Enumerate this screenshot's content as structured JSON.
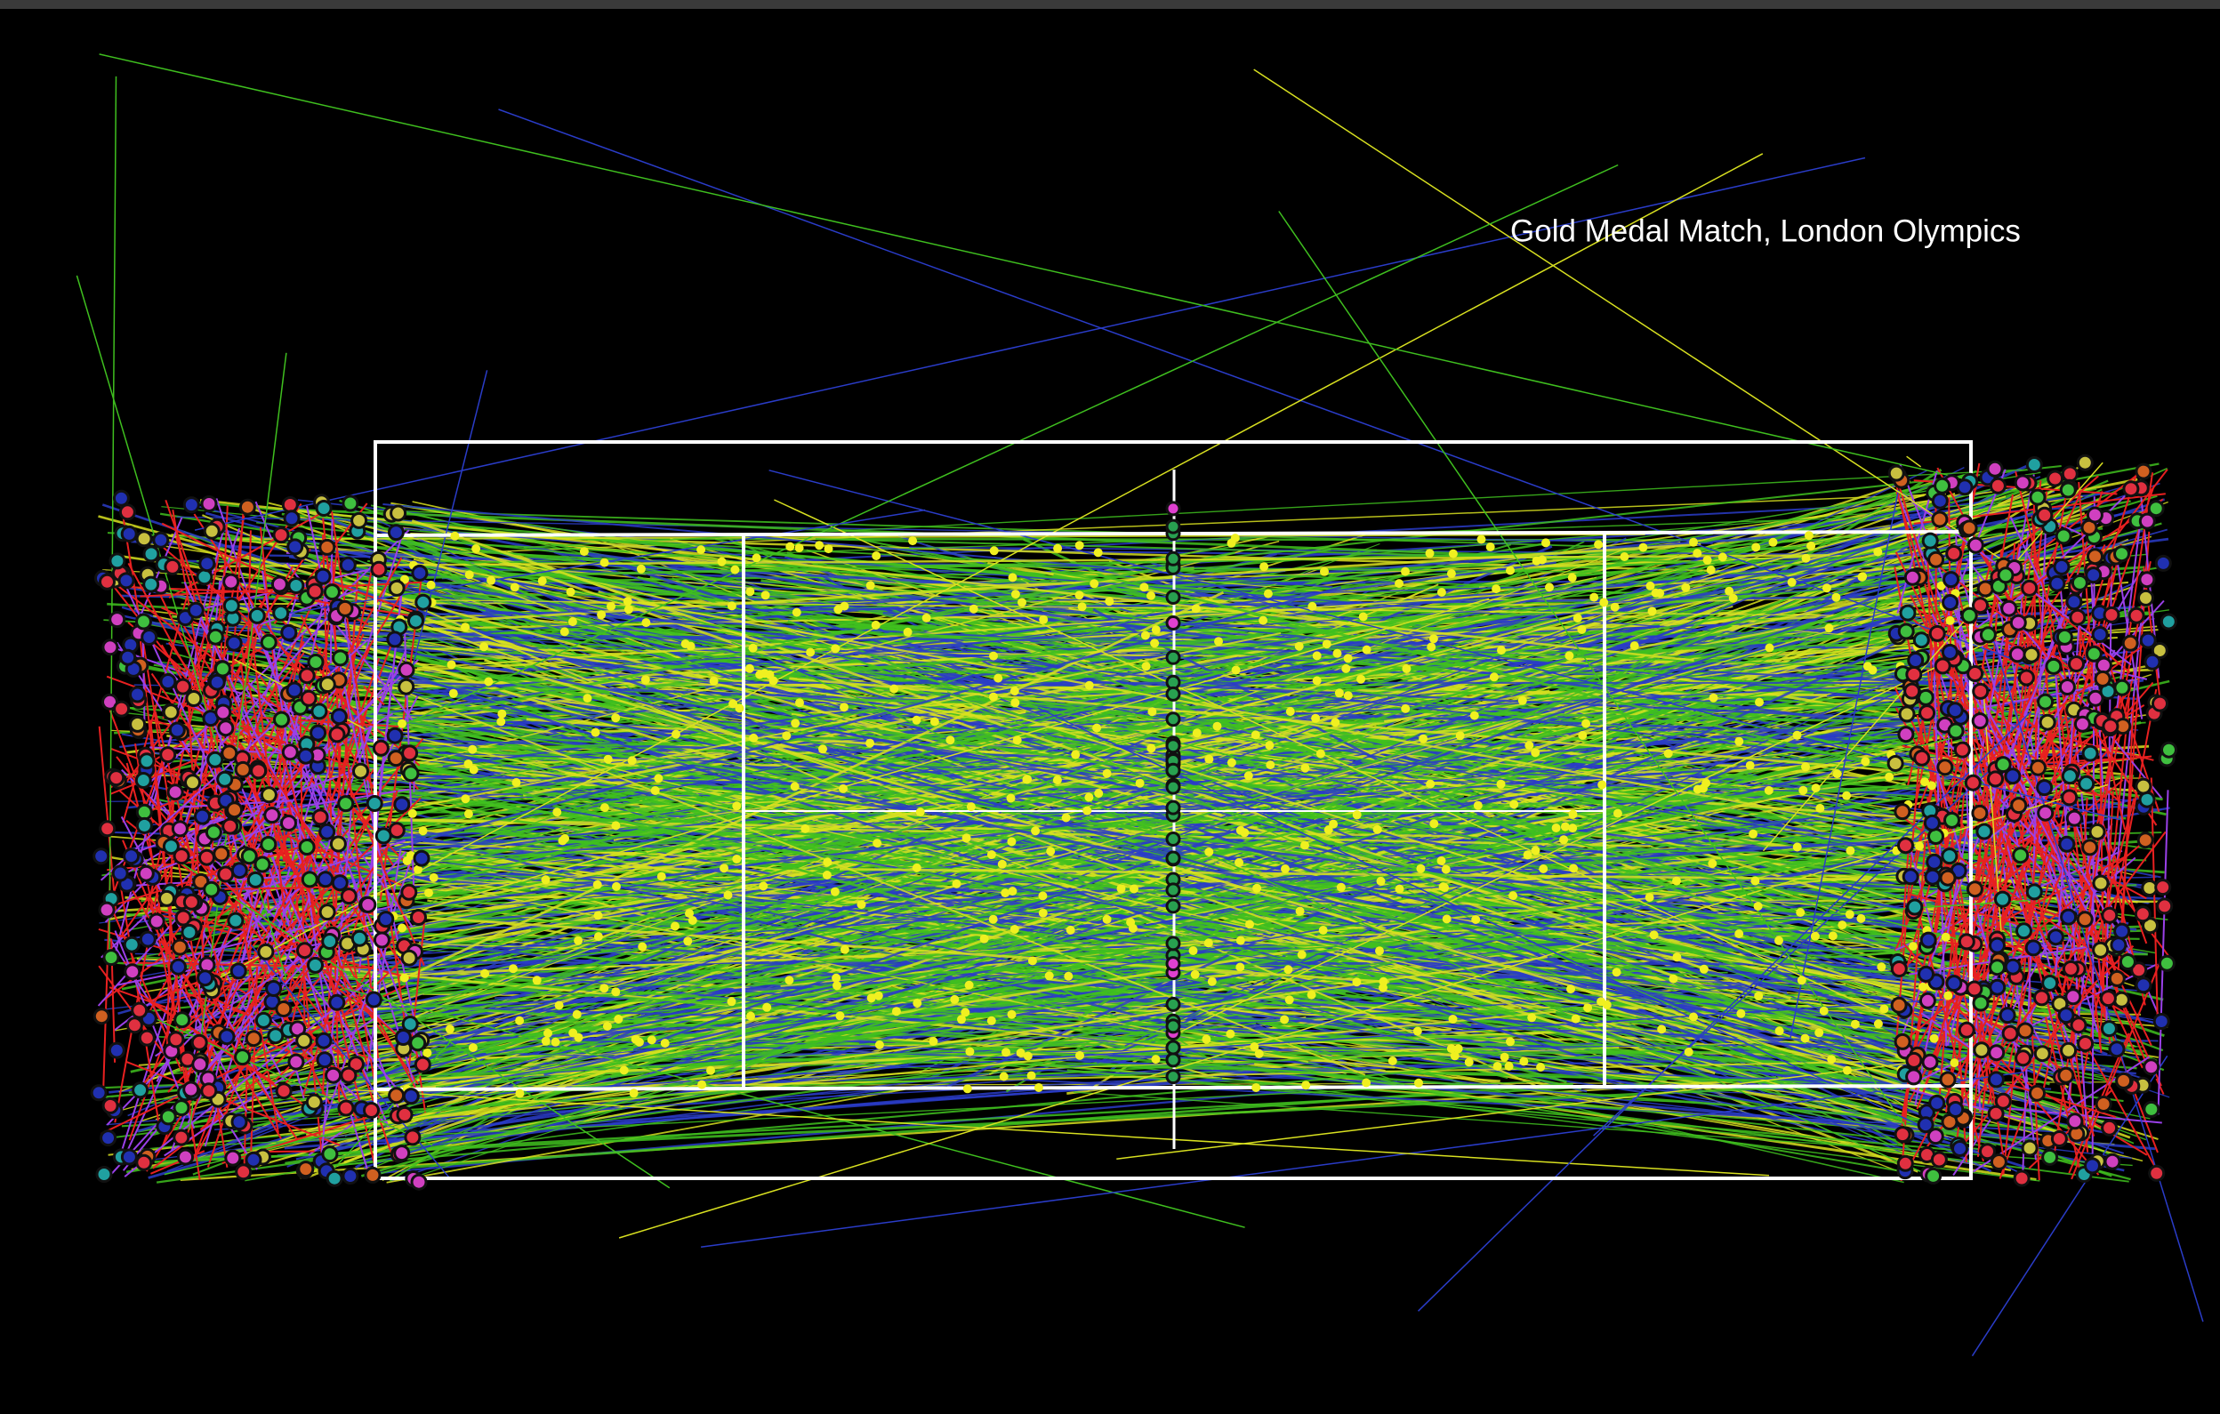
{
  "title": "Gold Medal Match, London Olympics"
}
